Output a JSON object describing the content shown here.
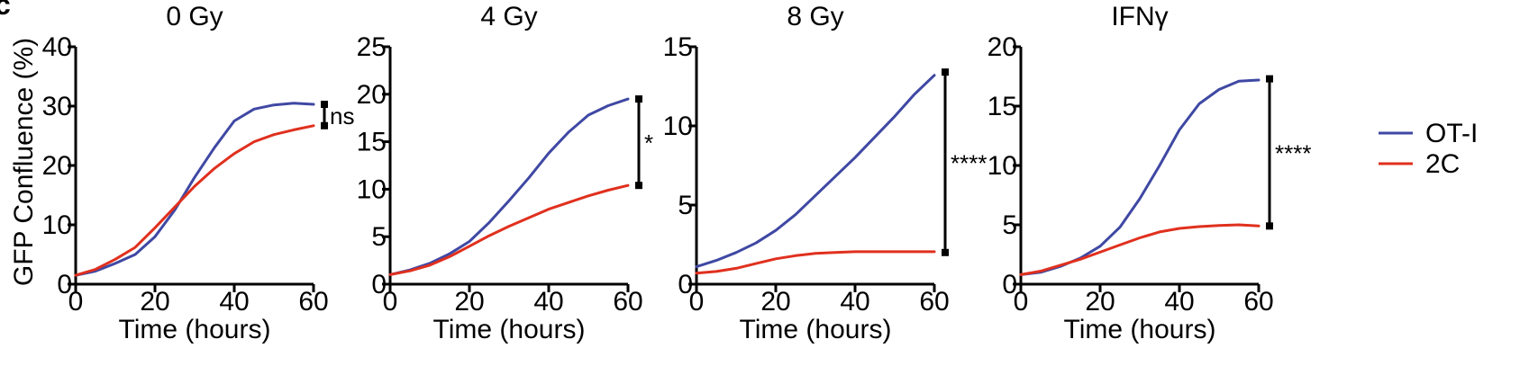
{
  "figure": {
    "panel_letter": "c"
  },
  "legend": {
    "items": [
      {
        "label": "OT-I",
        "color": "#3f48a3"
      },
      {
        "label": "2C",
        "color": "#e0301e"
      }
    ]
  },
  "chart_data": [
    {
      "type": "line",
      "title": "0 Gy",
      "xlabel": "Time (hours)",
      "ylabel": "GFP Confluence (%)",
      "xlim": [
        0,
        60
      ],
      "ylim": [
        0,
        40
      ],
      "xticks": [
        0,
        20,
        40,
        60
      ],
      "yticks": [
        0,
        10,
        20,
        30,
        40
      ],
      "x": [
        0,
        5,
        10,
        15,
        20,
        25,
        30,
        35,
        40,
        45,
        50,
        55,
        60
      ],
      "series": [
        {
          "name": "OT-I",
          "values": [
            1.5,
            2.2,
            3.5,
            5.0,
            8.0,
            12.5,
            18.0,
            23.0,
            27.5,
            29.5,
            30.2,
            30.5,
            30.3
          ]
        },
        {
          "name": "2C",
          "values": [
            1.5,
            2.5,
            4.2,
            6.2,
            9.5,
            13.0,
            16.5,
            19.5,
            22.0,
            24.0,
            25.2,
            26.0,
            26.7
          ]
        }
      ],
      "significance": {
        "label": "ns",
        "range": [
          26.7,
          30.3
        ]
      }
    },
    {
      "type": "line",
      "title": "4 Gy",
      "xlabel": "Time (hours)",
      "ylabel": "",
      "xlim": [
        0,
        60
      ],
      "ylim": [
        0,
        25
      ],
      "xticks": [
        0,
        20,
        40,
        60
      ],
      "yticks": [
        0,
        5,
        10,
        15,
        20,
        25
      ],
      "x": [
        0,
        5,
        10,
        15,
        20,
        25,
        30,
        35,
        40,
        45,
        50,
        55,
        60
      ],
      "series": [
        {
          "name": "OT-I",
          "values": [
            1.0,
            1.5,
            2.2,
            3.2,
            4.5,
            6.5,
            8.8,
            11.2,
            13.8,
            16.0,
            17.8,
            18.8,
            19.5
          ]
        },
        {
          "name": "2C",
          "values": [
            1.0,
            1.4,
            2.0,
            2.9,
            4.0,
            5.1,
            6.1,
            7.0,
            7.9,
            8.6,
            9.3,
            9.9,
            10.4
          ]
        }
      ],
      "significance": {
        "label": "*",
        "range": [
          10.4,
          19.5
        ]
      }
    },
    {
      "type": "line",
      "title": "8 Gy",
      "xlabel": "Time (hours)",
      "ylabel": "",
      "xlim": [
        0,
        60
      ],
      "ylim": [
        0,
        15
      ],
      "xticks": [
        0,
        20,
        40,
        60
      ],
      "yticks": [
        0,
        5,
        10,
        15
      ],
      "x": [
        0,
        5,
        10,
        15,
        20,
        25,
        30,
        35,
        40,
        45,
        50,
        55,
        60
      ],
      "series": [
        {
          "name": "OT-I",
          "values": [
            1.1,
            1.5,
            2.0,
            2.6,
            3.4,
            4.4,
            5.6,
            6.8,
            8.0,
            9.3,
            10.6,
            12.0,
            13.2
          ]
        },
        {
          "name": "2C",
          "values": [
            0.7,
            0.8,
            1.0,
            1.3,
            1.6,
            1.8,
            1.95,
            2.0,
            2.05,
            2.05,
            2.05,
            2.05,
            2.05
          ]
        }
      ],
      "significance": {
        "label": "****",
        "range": [
          2.0,
          13.4
        ]
      }
    },
    {
      "type": "line",
      "title": "IFNγ",
      "xlabel": "Time (hours)",
      "ylabel": "",
      "xlim": [
        0,
        60
      ],
      "ylim": [
        0,
        20
      ],
      "xticks": [
        0,
        20,
        40,
        60
      ],
      "yticks": [
        0,
        5,
        10,
        15,
        20
      ],
      "x": [
        0,
        5,
        10,
        15,
        20,
        25,
        30,
        35,
        40,
        45,
        50,
        55,
        60
      ],
      "series": [
        {
          "name": "OT-I",
          "values": [
            0.8,
            1.0,
            1.5,
            2.2,
            3.2,
            4.8,
            7.2,
            10.0,
            13.0,
            15.2,
            16.4,
            17.1,
            17.2
          ]
        },
        {
          "name": "2C",
          "values": [
            0.8,
            1.1,
            1.6,
            2.1,
            2.7,
            3.3,
            3.9,
            4.4,
            4.7,
            4.85,
            4.95,
            5.0,
            4.9
          ]
        }
      ],
      "significance": {
        "label": "****",
        "range": [
          4.9,
          17.3
        ]
      }
    }
  ]
}
